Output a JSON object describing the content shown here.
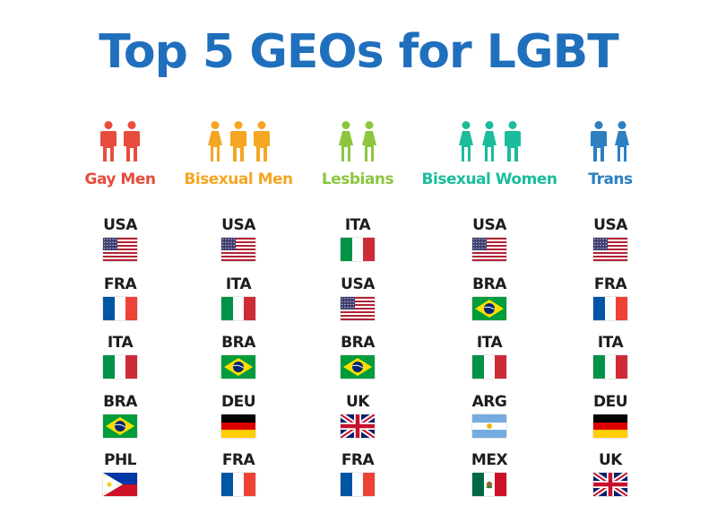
{
  "title": "Top 5 GEOs for LGBT",
  "columns": [
    {
      "label": "Gay Men",
      "color": "#e74c3c",
      "figures": [
        "male",
        "male"
      ],
      "countries": [
        "USA",
        "FRA",
        "ITA",
        "BRA",
        "PHL"
      ]
    },
    {
      "label": "Bisexual Men",
      "color": "#f5a623",
      "figures": [
        "female",
        "male",
        "male"
      ],
      "countries": [
        "USA",
        "ITA",
        "BRA",
        "DEU",
        "FRA"
      ]
    },
    {
      "label": "Lesbians",
      "color": "#8cc63f",
      "figures": [
        "female",
        "female"
      ],
      "countries": [
        "ITA",
        "USA",
        "BRA",
        "UK",
        "FRA"
      ]
    },
    {
      "label": "Bisexual Women",
      "color": "#1abc9c",
      "figures": [
        "female",
        "female",
        "male"
      ],
      "countries": [
        "USA",
        "BRA",
        "ITA",
        "ARG",
        "MEX"
      ]
    },
    {
      "label": "Trans",
      "color": "#2c7fc1",
      "figures": [
        "male",
        "female"
      ],
      "countries": [
        "USA",
        "FRA",
        "ITA",
        "DEU",
        "UK"
      ]
    }
  ]
}
